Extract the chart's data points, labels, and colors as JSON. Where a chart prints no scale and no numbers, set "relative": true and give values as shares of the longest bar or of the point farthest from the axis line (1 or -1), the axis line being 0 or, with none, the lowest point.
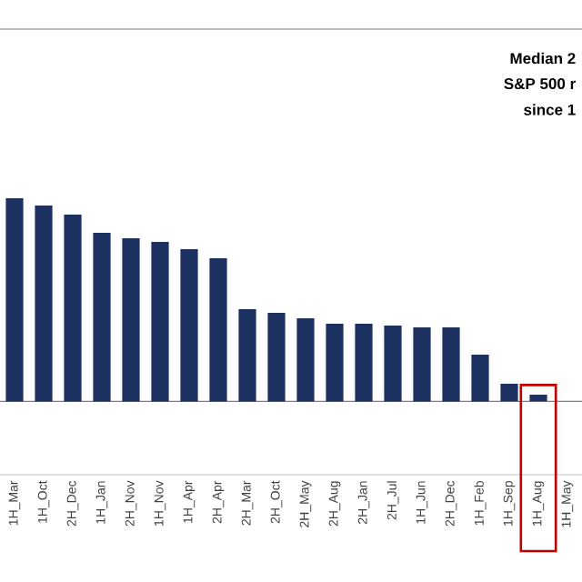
{
  "chart_data": {
    "type": "bar",
    "relative": true,
    "color": "#1c3160",
    "categories": [
      "1H_Mar",
      "1H_Oct",
      "2H_Dec",
      "1H_Jan",
      "2H_Nov",
      "1H_Nov",
      "1H_Apr",
      "2H_Apr",
      "2H_Mar",
      "2H_Oct",
      "2H_May",
      "2H_Aug",
      "2H_Jan",
      "2H_Jul",
      "1H_Jun",
      "2H_Dec",
      "1H_Feb",
      "1H_Sep",
      "1H_Aug",
      "1H_May"
    ],
    "values": [
      1.0,
      0.964,
      0.919,
      0.83,
      0.803,
      0.785,
      0.749,
      0.705,
      0.454,
      0.436,
      0.409,
      0.382,
      0.382,
      0.373,
      0.364,
      0.364,
      0.23,
      0.087,
      0.033,
      null
    ],
    "annotations": [
      "Median 2",
      "S&P 500 r",
      "since 1"
    ]
  }
}
